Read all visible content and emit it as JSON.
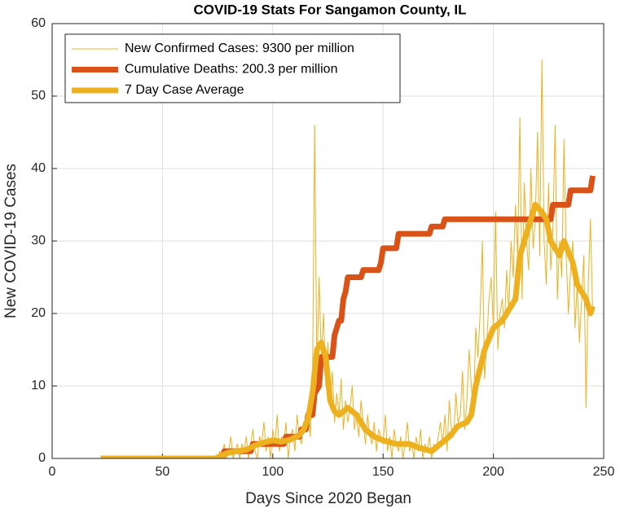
{
  "chart_data": {
    "type": "line",
    "title": "COVID-19 Stats For Sangamon County, IL",
    "x_label": "Days Since 2020 Began",
    "y_label": "New COVID-19 Cases",
    "xlim": [
      0,
      250
    ],
    "xticks": [
      0,
      50,
      100,
      150,
      200,
      250
    ],
    "ylim": [
      0,
      60
    ],
    "yticks": [
      0,
      10,
      20,
      30,
      40,
      50,
      60
    ],
    "grid": true,
    "legend": "northwest",
    "series": [
      {
        "name": "New Confirmed Cases: 9300 per million",
        "color": "#EDB120",
        "linewidth": 1,
        "x": [
          22,
          75,
          76,
          77,
          78,
          79,
          80,
          81,
          82,
          83,
          84,
          85,
          86,
          87,
          88,
          89,
          90,
          91,
          92,
          93,
          94,
          95,
          96,
          97,
          98,
          99,
          100,
          101,
          102,
          103,
          104,
          105,
          106,
          107,
          108,
          109,
          110,
          111,
          112,
          113,
          114,
          115,
          116,
          117,
          118,
          119,
          120,
          121,
          122,
          123,
          124,
          125,
          126,
          127,
          128,
          129,
          130,
          131,
          132,
          133,
          134,
          135,
          136,
          137,
          138,
          139,
          140,
          141,
          142,
          143,
          144,
          145,
          146,
          147,
          148,
          149,
          150,
          151,
          152,
          153,
          154,
          155,
          156,
          157,
          158,
          159,
          160,
          161,
          162,
          163,
          164,
          165,
          166,
          167,
          168,
          169,
          170,
          171,
          172,
          173,
          174,
          175,
          176,
          177,
          178,
          179,
          180,
          181,
          182,
          183,
          184,
          185,
          186,
          187,
          188,
          189,
          190,
          191,
          192,
          193,
          194,
          195,
          196,
          197,
          198,
          199,
          200,
          201,
          202,
          203,
          204,
          205,
          206,
          207,
          208,
          209,
          210,
          211,
          212,
          213,
          214,
          215,
          216,
          217,
          218,
          219,
          220,
          221,
          222,
          223,
          224,
          225,
          226,
          227,
          228,
          229,
          230,
          231,
          232,
          233,
          234,
          235,
          236,
          237,
          238,
          239,
          240,
          241,
          242,
          243,
          244,
          245
        ],
        "values": [
          0,
          0,
          1,
          0,
          2,
          0,
          1,
          3,
          0,
          1,
          2,
          0,
          2,
          1,
          3,
          0,
          2,
          4,
          1,
          0,
          3,
          2,
          5,
          1,
          3,
          0,
          4,
          2,
          6,
          1,
          3,
          2,
          5,
          0,
          3,
          4,
          1,
          6,
          3,
          2,
          5,
          4,
          7,
          3,
          10,
          46,
          12,
          25,
          14,
          20,
          10,
          16,
          8,
          12,
          5,
          9,
          6,
          11,
          4,
          8,
          5,
          7,
          10,
          4,
          6,
          3,
          8,
          5,
          2,
          6,
          3,
          2,
          5,
          1,
          4,
          3,
          2,
          6,
          1,
          3,
          0,
          4,
          2,
          1,
          3,
          0,
          2,
          5,
          1,
          2,
          0,
          3,
          1,
          4,
          0,
          2,
          1,
          3,
          0,
          2,
          1,
          3,
          5,
          2,
          6,
          1,
          8,
          4,
          3,
          9,
          5,
          6,
          12,
          4,
          8,
          15,
          10,
          6,
          18,
          14,
          20,
          30,
          11,
          16,
          22,
          25,
          18,
          34,
          15,
          20,
          22,
          18,
          26,
          20,
          30,
          25,
          35,
          28,
          47,
          22,
          38,
          30,
          26,
          40,
          29,
          33,
          45,
          28,
          55,
          30,
          24,
          38,
          26,
          32,
          46,
          22,
          30,
          25,
          44,
          28,
          20,
          26,
          30,
          18,
          24,
          16,
          22,
          28,
          7,
          24,
          33,
          20
        ]
      },
      {
        "name": "Cumulative Deaths: 200.3 per million",
        "color": "#D95319",
        "linewidth": 7,
        "x": [
          22,
          77,
          78,
          90,
          91,
          105,
          106,
          112,
          113,
          115,
          116,
          118,
          119,
          121,
          122,
          127,
          128,
          130,
          131,
          132,
          133,
          134,
          135,
          140,
          141,
          148,
          149,
          150,
          151,
          156,
          157,
          171,
          172,
          177,
          178,
          226,
          227,
          234,
          235,
          244,
          245
        ],
        "values": [
          0,
          0,
          1,
          1,
          2,
          2,
          3,
          3,
          4,
          4,
          6,
          6,
          9,
          10,
          14,
          14,
          17,
          19,
          19,
          22,
          23,
          25,
          25,
          25,
          26,
          26,
          27,
          29,
          29,
          29,
          31,
          31,
          32,
          32,
          33,
          33,
          35,
          35,
          37,
          37,
          39
        ]
      },
      {
        "name": "7 Day Case Average",
        "color": "#EDB120",
        "linewidth": 7,
        "x": [
          22,
          74,
          76,
          80,
          84,
          88,
          92,
          96,
          100,
          104,
          108,
          112,
          114,
          116,
          118,
          120,
          122,
          124,
          126,
          128,
          130,
          134,
          138,
          142,
          146,
          150,
          156,
          162,
          166,
          172,
          176,
          180,
          184,
          188,
          190,
          192,
          196,
          200,
          204,
          206,
          210,
          212,
          216,
          219,
          222,
          224,
          226,
          230,
          232,
          236,
          238,
          242,
          244,
          245
        ],
        "values": [
          0,
          0,
          0.3,
          0.8,
          1,
          1.2,
          1.8,
          2.2,
          2.5,
          2.3,
          2.6,
          3.2,
          4,
          5.5,
          9,
          15,
          16,
          14,
          8,
          6.5,
          6,
          7,
          6,
          4,
          3,
          2.5,
          2,
          2,
          1.5,
          1,
          2,
          3,
          4.5,
          5,
          6,
          10,
          15,
          18,
          19,
          20,
          22,
          28,
          32,
          35,
          34,
          33,
          30,
          28,
          30,
          27,
          24,
          22,
          20,
          21
        ]
      }
    ]
  }
}
